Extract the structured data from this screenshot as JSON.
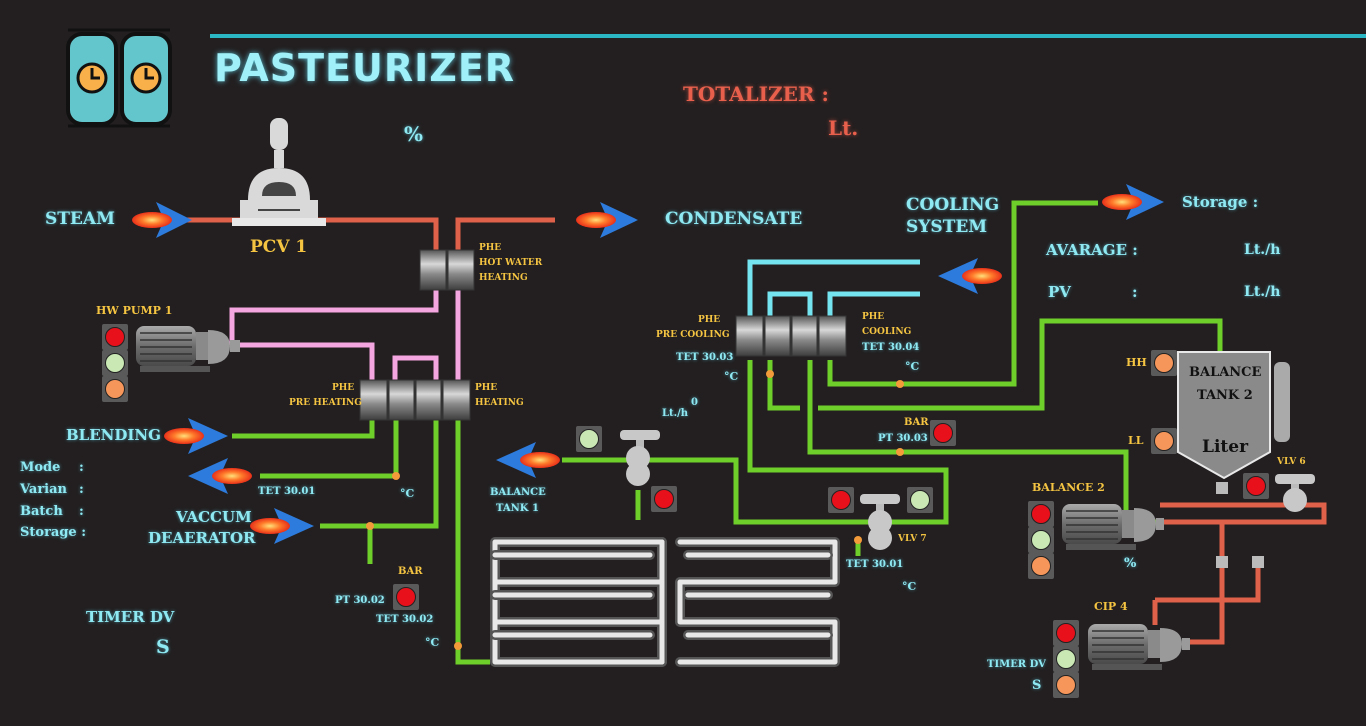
{
  "app": {
    "title": "PASTEURIZER"
  },
  "totalizer": {
    "label": "TOTALIZER :",
    "unit": "Lt."
  },
  "pcv": {
    "label": "PCV 1",
    "unit": "%"
  },
  "flows": {
    "steam": "STEAM",
    "condensate": "CONDENSATE",
    "cooling_system_1": "COOLING",
    "cooling_system_2": "SYSTEM",
    "blending": "BLENDING",
    "vaccum_1": "VACCUM",
    "vaccum_2": "DEAERATOR",
    "balance_tank_1a": "BALANCE",
    "balance_tank_1b": "TANK 1"
  },
  "storage_panel": {
    "storage_label": "Storage :",
    "avarage_label": "AVARAGE :",
    "avarage_unit": "Lt./h",
    "pv_label": "PV",
    "pv_colon": ":",
    "pv_unit": "Lt./h"
  },
  "phe": {
    "hot_water_1": "PHE",
    "hot_water_2": "HOT WATER",
    "hot_water_3": "HEATING",
    "pre_heating_1": "PHE",
    "pre_heating_2": "PRE HEATING",
    "heating_1": "PHE",
    "heating_2": "HEATING",
    "pre_cooling_1": "PHE",
    "pre_cooling_2": "PRE COOLING",
    "cooling_1": "PHE",
    "cooling_2": "COOLING"
  },
  "sensors": {
    "tet3003": "TET 30.03",
    "tet3003_unit": "°C",
    "tet3004": "TET 30.04",
    "tet3004_unit": "°C",
    "flow_unit": "Lt./h",
    "flow_value": "0",
    "pt3003_unit": "BAR",
    "pt3003": "PT 30.03",
    "tet3001a": "TET 30.01",
    "tet3001a_unit": "°C",
    "pt3002_unit": "BAR",
    "pt3002": "PT 30.02",
    "tet3002": "TET 30.02",
    "tet3002_unit": "°C",
    "tet3001b": "TET 30.01",
    "tet3001b_unit": "°C"
  },
  "pumps": {
    "hw_pump": "HW PUMP 1",
    "balance2": "BALANCE 2",
    "balance2_unit": "%",
    "cip4": "CIP 4"
  },
  "valves": {
    "vlv7": "VLV 7",
    "vlv6": "VLV 6"
  },
  "balance_tank2": {
    "line1": "BALANCE",
    "line2": "TANK 2",
    "unit": "Liter",
    "hh": "HH",
    "ll": "LL"
  },
  "info": {
    "mode": "Mode",
    "varian": "Varian",
    "batch": "Batch",
    "storage": "Storage :",
    "colon": ":"
  },
  "timer": {
    "label": "TIMER DV",
    "unit": "S",
    "label2": "TIMER DV",
    "unit2": "S"
  },
  "colors": {
    "background": "#231f20",
    "steam_pipe": "#e0614a",
    "product_pipe": "#6fcf2a",
    "hot_water_pipe": "#f4a6e0",
    "cooling_pipe": "#74e4f0",
    "label_cyan": "#8fe9f3",
    "label_yellow": "#f5c542"
  }
}
